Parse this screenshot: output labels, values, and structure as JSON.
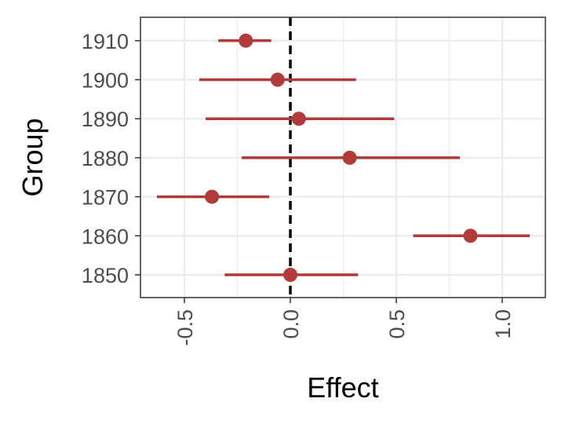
{
  "chart_data": {
    "type": "forest",
    "title": "",
    "xlabel": "Effect",
    "ylabel": "Group",
    "xlim": [
      -0.71,
      1.2
    ],
    "x_ticks": [
      -0.5,
      0.0,
      0.5,
      1.0
    ],
    "x_tick_labels": [
      "-0.5",
      "0.0",
      "0.5",
      "1.0"
    ],
    "reference_line": 0,
    "grid": true,
    "categories": [
      "1850",
      "1860",
      "1870",
      "1880",
      "1890",
      "1900",
      "1910"
    ],
    "estimates": [
      0.0,
      0.85,
      -0.37,
      0.28,
      0.04,
      -0.06,
      -0.21
    ],
    "ci_low": [
      -0.31,
      0.58,
      -0.63,
      -0.23,
      -0.4,
      -0.43,
      -0.34
    ],
    "ci_high": [
      0.32,
      1.13,
      -0.1,
      0.8,
      0.49,
      0.31,
      -0.09
    ],
    "colors": {
      "marker": "#b23a3a",
      "reference": "#000000",
      "grid": "#ebebeb",
      "panel_border": "#333333"
    }
  }
}
